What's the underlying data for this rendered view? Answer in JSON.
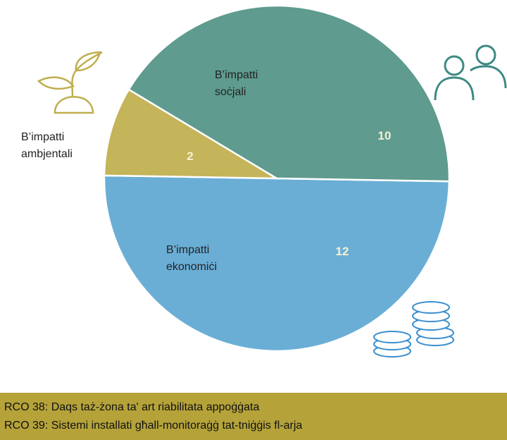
{
  "chart_data": {
    "type": "pie",
    "categories": [
      "B’impatti ekonomiċi",
      "B’impatti ambjentali",
      "B’impatti soċjali"
    ],
    "values": [
      12,
      2,
      10
    ],
    "colors": [
      "#6aaed6",
      "#c4b45a",
      "#5f9b8f"
    ],
    "footer": [
      "RCO 38: Daqs taż-żona ta' art riabilitata appoġġata",
      "RCO 39: Sistemi installati għall-monitoraġġ tat-tniġġis fl-arja"
    ]
  }
}
